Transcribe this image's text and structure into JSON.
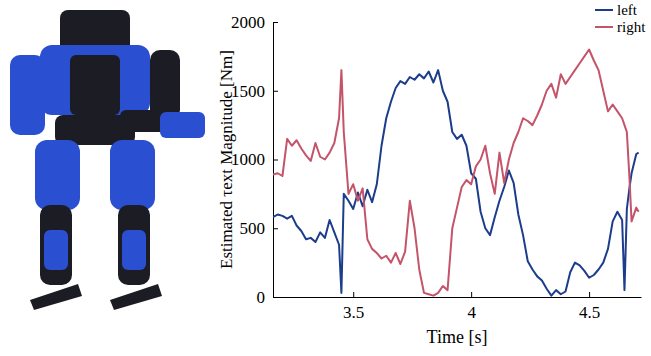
{
  "chart_data": {
    "type": "line",
    "x_label": "Time [s]",
    "y_label": "Estimated τext Magnitude [Nm]",
    "x": [
      3.16,
      3.18,
      3.2,
      3.22,
      3.24,
      3.26,
      3.28,
      3.3,
      3.32,
      3.34,
      3.36,
      3.38,
      3.4,
      3.42,
      3.44,
      3.45,
      3.46,
      3.48,
      3.5,
      3.52,
      3.54,
      3.56,
      3.58,
      3.6,
      3.62,
      3.64,
      3.66,
      3.68,
      3.7,
      3.72,
      3.74,
      3.76,
      3.78,
      3.8,
      3.82,
      3.84,
      3.86,
      3.88,
      3.9,
      3.92,
      3.94,
      3.96,
      3.98,
      4.0,
      4.02,
      4.04,
      4.06,
      4.08,
      4.1,
      4.12,
      4.14,
      4.16,
      4.18,
      4.2,
      4.22,
      4.24,
      4.26,
      4.28,
      4.3,
      4.32,
      4.34,
      4.36,
      4.38,
      4.4,
      4.42,
      4.44,
      4.46,
      4.48,
      4.5,
      4.52,
      4.54,
      4.56,
      4.58,
      4.6,
      4.62,
      4.64,
      4.65,
      4.66,
      4.67,
      4.68,
      4.7,
      4.71
    ],
    "series": [
      {
        "name": "left",
        "color": "#1c3c8c",
        "values": [
          580,
          600,
          590,
          570,
          590,
          520,
          480,
          420,
          430,
          400,
          470,
          430,
          560,
          470,
          380,
          30,
          750,
          700,
          640,
          760,
          660,
          780,
          690,
          820,
          1100,
          1300,
          1420,
          1520,
          1570,
          1550,
          1600,
          1580,
          1620,
          1590,
          1640,
          1560,
          1650,
          1500,
          1420,
          1200,
          1150,
          1180,
          1100,
          900,
          860,
          620,
          500,
          450,
          580,
          700,
          800,
          920,
          830,
          600,
          450,
          260,
          200,
          150,
          120,
          60,
          10,
          50,
          20,
          40,
          180,
          250,
          230,
          190,
          140,
          160,
          200,
          250,
          350,
          550,
          620,
          560,
          50,
          640,
          780,
          900,
          1040,
          1050
        ]
      },
      {
        "name": "right",
        "color": "#c4546a",
        "values": [
          890,
          900,
          880,
          1150,
          1100,
          1140,
          1080,
          1030,
          990,
          1120,
          1020,
          1000,
          1050,
          1120,
          1300,
          1650,
          1200,
          750,
          820,
          700,
          790,
          420,
          350,
          320,
          280,
          300,
          250,
          320,
          240,
          330,
          700,
          500,
          200,
          30,
          20,
          10,
          30,
          80,
          50,
          500,
          650,
          800,
          850,
          820,
          950,
          1000,
          1100,
          900,
          750,
          1050,
          830,
          1000,
          1120,
          1200,
          1300,
          1280,
          1250,
          1320,
          1400,
          1500,
          1550,
          1450,
          1620,
          1550,
          1600,
          1650,
          1700,
          1750,
          1800,
          1720,
          1650,
          1500,
          1350,
          1400,
          1350,
          1300,
          1250,
          1200,
          900,
          550,
          650,
          620
        ]
      }
    ],
    "xlim": [
      3.16,
      4.72
    ],
    "xticks": [
      3.5,
      4,
      4.5
    ],
    "ylim": [
      0,
      2000
    ],
    "yticks": [
      0,
      500,
      1000,
      1500,
      2000
    ],
    "grid": false,
    "legend": "top-right"
  }
}
